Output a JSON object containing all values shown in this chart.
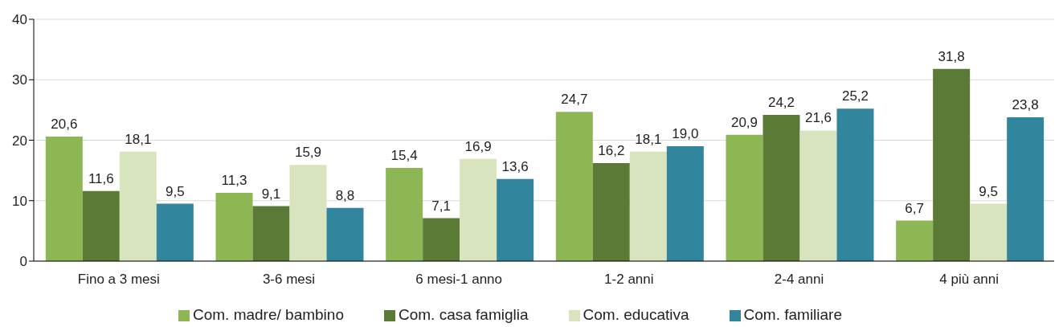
{
  "chart_data": {
    "type": "bar",
    "categories": [
      "Fino a 3 mesi",
      "3-6 mesi",
      "6 mesi-1 anno",
      "1-2 anni",
      "2-4 anni",
      "4 più anni"
    ],
    "series": [
      {
        "name": "Com. madre/ bambino",
        "color": "#8db655",
        "values": [
          20.6,
          11.3,
          15.4,
          24.7,
          20.9,
          6.7
        ],
        "value_labels": [
          "20,6",
          "11,3",
          "15,4",
          "24,7",
          "20,9",
          "6,7"
        ]
      },
      {
        "name": "Com. casa famiglia",
        "color": "#5b7a35",
        "values": [
          11.6,
          9.1,
          7.1,
          16.2,
          24.2,
          31.8
        ],
        "value_labels": [
          "11,6",
          "9,1",
          "7,1",
          "16,2",
          "24,2",
          "31,8"
        ]
      },
      {
        "name": "Com. educativa",
        "color": "#d7e4bd",
        "values": [
          18.1,
          15.9,
          16.9,
          18.1,
          21.6,
          9.5
        ],
        "value_labels": [
          "18,1",
          "15,9",
          "16,9",
          "18,1",
          "21,6",
          "9,5"
        ]
      },
      {
        "name": "Com. familiare",
        "color": "#31859c",
        "values": [
          9.5,
          8.8,
          13.6,
          19.0,
          25.2,
          23.8
        ],
        "value_labels": [
          "9,5",
          "8,8",
          "13,6",
          "19,0",
          "25,2",
          "23,8"
        ]
      }
    ],
    "ylim": [
      0,
      40
    ],
    "yticks": [
      0,
      10,
      20,
      30,
      40
    ],
    "grid": "y",
    "legend": "bottom"
  }
}
